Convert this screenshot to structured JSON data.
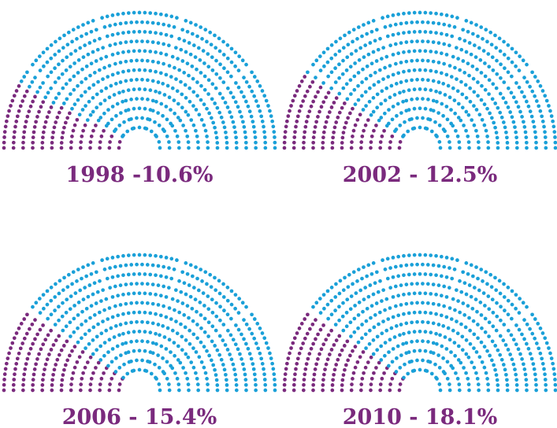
{
  "colors": {
    "highlight": "#7a2a7d",
    "seat": "#1aa0d8",
    "background": "#ffffff"
  },
  "chart_data": [
    {
      "type": "parliament",
      "label": "1998 -10.6%",
      "share_percent": 10.6
    },
    {
      "type": "parliament",
      "label": "2002 - 12.5%",
      "share_percent": 12.5
    },
    {
      "type": "parliament",
      "label": "2006 - 15.4%",
      "share_percent": 15.4
    },
    {
      "type": "parliament",
      "label": "2010 - 18.1%",
      "share_percent": 18.1
    }
  ]
}
